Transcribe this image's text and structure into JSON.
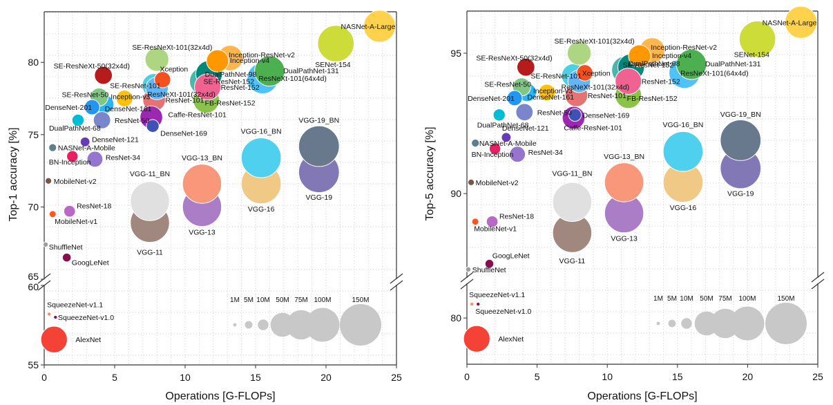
{
  "chart_data": [
    {
      "type": "scatter",
      "title": "",
      "xlabel": "Operations [G-FLOPs]",
      "ylabel": "Top-1 accuracy [%]",
      "xlim": [
        0,
        25
      ],
      "x_ticks": [
        "0",
        "5",
        "10",
        "15",
        "20",
        "25"
      ],
      "ylim_upper": [
        65,
        83.5
      ],
      "ylim_lower": [
        55,
        60
      ],
      "y_ticks_upper": [
        "65",
        "70",
        "75",
        "80"
      ],
      "y_ticks_lower": [
        "55",
        "60"
      ],
      "axis_break": "65 / 60",
      "grid": true,
      "bubble_size": "parameters",
      "legend": {
        "position": "bottom-right",
        "entries": [
          "1M",
          "5M",
          "10M",
          "50M",
          "75M",
          "100M",
          "150M"
        ],
        "values_M": [
          1,
          5,
          10,
          50,
          75,
          100,
          150
        ]
      },
      "points": [
        {
          "name": "NASNet-A-Large",
          "x": 23.8,
          "y": 82.5,
          "params_M": 88.9,
          "color": "#ffd24d"
        },
        {
          "name": "SENet-154",
          "x": 20.7,
          "y": 81.3,
          "params_M": 115.1,
          "color": "#cddc39"
        },
        {
          "name": "SE-ResNeXt-101(32x4d)",
          "x": 8.0,
          "y": 80.2,
          "params_M": 49.0,
          "color": "#aed581"
        },
        {
          "name": "Inception-ResNet-v2",
          "x": 13.2,
          "y": 80.3,
          "params_M": 55.8,
          "color": "#ffb74d"
        },
        {
          "name": "Inception-v4",
          "x": 12.3,
          "y": 80.1,
          "params_M": 42.7,
          "color": "#ff9800"
        },
        {
          "name": "DualPathNet-131",
          "x": 16.0,
          "y": 79.4,
          "params_M": 79.3,
          "color": "#4caf50"
        },
        {
          "name": "DualPathNet-98",
          "x": 11.7,
          "y": 79.2,
          "params_M": 61.6,
          "color": "#00897b"
        },
        {
          "name": "ResNeXt-101(64x4d)",
          "x": 15.5,
          "y": 78.9,
          "params_M": 83.5,
          "color": "#4fc3f7"
        },
        {
          "name": "SE-ResNeXt-50(32x4d)",
          "x": 4.2,
          "y": 79.1,
          "params_M": 27.6,
          "color": "#b71c1c"
        },
        {
          "name": "Xception",
          "x": 8.4,
          "y": 78.8,
          "params_M": 22.9,
          "color": "#f4511e"
        },
        {
          "name": "SE-ResNet-152",
          "x": 11.3,
          "y": 78.7,
          "params_M": 66.8,
          "color": "#4db6ac"
        },
        {
          "name": "SE-ResNet-101",
          "x": 7.8,
          "y": 78.4,
          "params_M": 49.3,
          "color": "#4dd0e1"
        },
        {
          "name": "ResNeXt-101(32x4d)",
          "x": 8.0,
          "y": 78.2,
          "params_M": 44.2,
          "color": "#64b5f6"
        },
        {
          "name": "ResNet-152",
          "x": 11.6,
          "y": 78.3,
          "params_M": 60.2,
          "color": "#f06292"
        },
        {
          "name": "ResNet-101",
          "x": 7.8,
          "y": 77.4,
          "params_M": 44.5,
          "color": "#e57373"
        },
        {
          "name": "FB-ResNet-152",
          "x": 11.5,
          "y": 77.4,
          "params_M": 60.3,
          "color": "#8bc34a"
        },
        {
          "name": "SE-ResNet-50",
          "x": 3.9,
          "y": 77.6,
          "params_M": 28.1,
          "color": "#81c784"
        },
        {
          "name": "Inception-v3",
          "x": 5.7,
          "y": 77.5,
          "params_M": 23.8,
          "color": "#ffc107"
        },
        {
          "name": "DenseNet-161",
          "x": 4.3,
          "y": 77.1,
          "params_M": 28.7,
          "color": "#29b6f6"
        },
        {
          "name": "DenseNet-201",
          "x": 3.4,
          "y": 76.9,
          "params_M": 20.0,
          "color": "#2196f3"
        },
        {
          "name": "ResNet-50",
          "x": 4.1,
          "y": 76.0,
          "params_M": 25.6,
          "color": "#7986cb"
        },
        {
          "name": "Caffe-ResNet-101",
          "x": 7.6,
          "y": 76.2,
          "params_M": 44.5,
          "color": "#9c27b0"
        },
        {
          "name": "DenseNet-169",
          "x": 7.7,
          "y": 75.6,
          "params_M": 14.1,
          "color": "#3f51b5"
        },
        {
          "name": "DualPathNet-68",
          "x": 2.4,
          "y": 76.0,
          "params_M": 12.6,
          "color": "#00bcd4"
        },
        {
          "name": "DenseNet-121",
          "x": 2.9,
          "y": 74.5,
          "params_M": 8.0,
          "color": "#673ab7"
        },
        {
          "name": "NASNet-A-Mobile",
          "x": 0.6,
          "y": 74.1,
          "params_M": 5.3,
          "color": "#607d8b"
        },
        {
          "name": "BN-Inception",
          "x": 2.0,
          "y": 73.5,
          "params_M": 11.3,
          "color": "#e91e63"
        },
        {
          "name": "ResNet-34",
          "x": 3.6,
          "y": 73.3,
          "params_M": 21.8,
          "color": "#9575cd"
        },
        {
          "name": "MobileNet-v2",
          "x": 0.3,
          "y": 71.8,
          "params_M": 3.5,
          "color": "#795548"
        },
        {
          "name": "ResNet-18",
          "x": 1.8,
          "y": 69.7,
          "params_M": 11.7,
          "color": "#ba68c8"
        },
        {
          "name": "MobileNet-v1",
          "x": 0.6,
          "y": 69.5,
          "params_M": 4.2,
          "color": "#ff5722"
        },
        {
          "name": "ShuffleNet",
          "x": 0.1,
          "y": 67.4,
          "params_M": 2.3,
          "color": "#9e9e9e"
        },
        {
          "name": "GoogLeNet",
          "x": 1.6,
          "y": 66.5,
          "params_M": 6.6,
          "color": "#880e4f"
        },
        {
          "name": "SqueezeNet-v1.1",
          "x": 0.35,
          "y": 58.2,
          "params_M": 1.2,
          "color": "#ff8a65"
        },
        {
          "name": "SqueezeNet-v1.0",
          "x": 0.8,
          "y": 58.0,
          "params_M": 1.2,
          "color": "#880e4f"
        },
        {
          "name": "AlexNet",
          "x": 0.7,
          "y": 56.6,
          "params_M": 61.1,
          "color": "#f44336"
        },
        {
          "name": "VGG-11",
          "x": 7.5,
          "y": 68.9,
          "params_M": 132.9,
          "color": "#a1887f"
        },
        {
          "name": "VGG-11_BN",
          "x": 7.5,
          "y": 70.4,
          "params_M": 132.9,
          "color": "#e0e0e0"
        },
        {
          "name": "VGG-13",
          "x": 11.2,
          "y": 70.0,
          "params_M": 133.0,
          "color": "#ab7dc6"
        },
        {
          "name": "VGG-13_BN",
          "x": 11.2,
          "y": 71.6,
          "params_M": 133.0,
          "color": "#f8977a"
        },
        {
          "name": "VGG-16",
          "x": 15.4,
          "y": 71.6,
          "params_M": 138.4,
          "color": "#f0c987"
        },
        {
          "name": "VGG-16_BN",
          "x": 15.4,
          "y": 73.4,
          "params_M": 138.4,
          "color": "#4fd0ee"
        },
        {
          "name": "VGG-19",
          "x": 19.5,
          "y": 72.4,
          "params_M": 143.7,
          "color": "#8378b6"
        },
        {
          "name": "VGG-19_BN",
          "x": 19.5,
          "y": 74.2,
          "params_M": 143.7,
          "color": "#68798d"
        }
      ]
    },
    {
      "type": "scatter",
      "title": "",
      "xlabel": "Operations [G-FLOPs]",
      "ylabel": "Top-5 accuracy [%]",
      "xlim": [
        0,
        25
      ],
      "x_ticks": [
        "0",
        "5",
        "10",
        "15",
        "20",
        "25"
      ],
      "ylim_upper": [
        87,
        96.5
      ],
      "ylim_lower": [
        78,
        81.5
      ],
      "y_ticks_upper": [
        "90",
        "95"
      ],
      "y_ticks_lower": [
        "80"
      ],
      "axis_break": "87 / 81.5",
      "grid": true,
      "bubble_size": "parameters",
      "legend": {
        "position": "bottom-right",
        "entries": [
          "1M",
          "5M",
          "10M",
          "50M",
          "75M",
          "100M",
          "150M"
        ],
        "values_M": [
          1,
          5,
          10,
          50,
          75,
          100,
          150
        ]
      },
      "points": [
        {
          "name": "NASNet-A-Large",
          "x": 23.8,
          "y": 96.1,
          "params_M": 88.9,
          "color": "#ffd24d"
        },
        {
          "name": "SENet-154",
          "x": 20.7,
          "y": 95.5,
          "params_M": 115.1,
          "color": "#cddc39"
        },
        {
          "name": "SE-ResNeXt-101(32x4d)",
          "x": 8.0,
          "y": 95.0,
          "params_M": 49.0,
          "color": "#aed581"
        },
        {
          "name": "Inception-ResNet-v2",
          "x": 13.2,
          "y": 95.1,
          "params_M": 55.8,
          "color": "#ffb74d"
        },
        {
          "name": "Inception-v4",
          "x": 12.3,
          "y": 94.9,
          "params_M": 42.7,
          "color": "#ff9800"
        },
        {
          "name": "DualPathNet-131",
          "x": 16.0,
          "y": 94.6,
          "params_M": 79.3,
          "color": "#4caf50"
        },
        {
          "name": "DualPathNet-98",
          "x": 11.7,
          "y": 94.5,
          "params_M": 61.6,
          "color": "#00897b"
        },
        {
          "name": "ResNeXt-101(64x4d)",
          "x": 15.5,
          "y": 94.3,
          "params_M": 83.5,
          "color": "#4fc3f7"
        },
        {
          "name": "SE-ResNeXt-50(32x4d)",
          "x": 4.2,
          "y": 94.5,
          "params_M": 27.6,
          "color": "#b71c1c"
        },
        {
          "name": "Xception",
          "x": 8.4,
          "y": 94.3,
          "params_M": 22.9,
          "color": "#f4511e"
        },
        {
          "name": "SE-ResNet-152",
          "x": 11.3,
          "y": 94.4,
          "params_M": 66.8,
          "color": "#4db6ac"
        },
        {
          "name": "SE-ResNet-101",
          "x": 7.6,
          "y": 94.2,
          "params_M": 49.3,
          "color": "#4dd0e1"
        },
        {
          "name": "ResNeXt-101(32x4d)",
          "x": 8.0,
          "y": 94.0,
          "params_M": 44.2,
          "color": "#64b5f6"
        },
        {
          "name": "ResNet-152",
          "x": 11.5,
          "y": 94.0,
          "params_M": 60.2,
          "color": "#f06292"
        },
        {
          "name": "ResNet-101",
          "x": 7.8,
          "y": 93.5,
          "params_M": 44.5,
          "color": "#e57373"
        },
        {
          "name": "FB-ResNet-152",
          "x": 11.5,
          "y": 93.5,
          "params_M": 60.3,
          "color": "#8bc34a"
        },
        {
          "name": "SE-ResNet-50",
          "x": 3.9,
          "y": 93.8,
          "params_M": 28.1,
          "color": "#81c784"
        },
        {
          "name": "Inception-v3",
          "x": 5.7,
          "y": 93.6,
          "params_M": 23.8,
          "color": "#ffc107"
        },
        {
          "name": "DenseNet-161",
          "x": 4.3,
          "y": 93.6,
          "params_M": 28.7,
          "color": "#29b6f6"
        },
        {
          "name": "DenseNet-201",
          "x": 3.4,
          "y": 93.4,
          "params_M": 20.0,
          "color": "#2196f3"
        },
        {
          "name": "ResNet-50",
          "x": 4.1,
          "y": 92.9,
          "params_M": 25.6,
          "color": "#7986cb"
        },
        {
          "name": "Caffe-ResNet-101",
          "x": 7.6,
          "y": 92.7,
          "params_M": 44.5,
          "color": "#9c27b0"
        },
        {
          "name": "DenseNet-169",
          "x": 7.7,
          "y": 92.8,
          "params_M": 14.1,
          "color": "#3f51b5"
        },
        {
          "name": "DualPathNet-68",
          "x": 2.3,
          "y": 92.8,
          "params_M": 12.6,
          "color": "#00bcd4"
        },
        {
          "name": "DenseNet-121",
          "x": 2.8,
          "y": 92.0,
          "params_M": 8.0,
          "color": "#673ab7"
        },
        {
          "name": "NASNet-A-Mobile",
          "x": 0.6,
          "y": 91.8,
          "params_M": 5.3,
          "color": "#607d8b"
        },
        {
          "name": "BN-Inception",
          "x": 2.0,
          "y": 91.6,
          "params_M": 11.3,
          "color": "#e91e63"
        },
        {
          "name": "ResNet-34",
          "x": 3.6,
          "y": 91.4,
          "params_M": 21.8,
          "color": "#9575cd"
        },
        {
          "name": "MobileNet-v2",
          "x": 0.3,
          "y": 90.4,
          "params_M": 3.5,
          "color": "#795548"
        },
        {
          "name": "ResNet-18",
          "x": 1.8,
          "y": 89.0,
          "params_M": 11.7,
          "color": "#ba68c8"
        },
        {
          "name": "MobileNet-v1",
          "x": 0.6,
          "y": 89.0,
          "params_M": 4.2,
          "color": "#ff5722"
        },
        {
          "name": "ShuffleNet",
          "x": 0.1,
          "y": 87.3,
          "params_M": 2.3,
          "color": "#9e9e9e"
        },
        {
          "name": "GoogLeNet",
          "x": 1.6,
          "y": 87.5,
          "params_M": 6.6,
          "color": "#880e4f"
        },
        {
          "name": "SqueezeNet-v1.1",
          "x": 0.35,
          "y": 80.6,
          "params_M": 1.2,
          "color": "#ff8a65"
        },
        {
          "name": "SqueezeNet-v1.0",
          "x": 0.8,
          "y": 80.6,
          "params_M": 1.2,
          "color": "#880e4f"
        },
        {
          "name": "AlexNet",
          "x": 0.7,
          "y": 79.1,
          "params_M": 61.1,
          "color": "#f44336"
        },
        {
          "name": "VGG-11",
          "x": 7.5,
          "y": 88.6,
          "params_M": 132.9,
          "color": "#a1887f"
        },
        {
          "name": "VGG-11_BN",
          "x": 7.5,
          "y": 89.7,
          "params_M": 132.9,
          "color": "#e0e0e0"
        },
        {
          "name": "VGG-13",
          "x": 11.2,
          "y": 89.3,
          "params_M": 133.0,
          "color": "#ab7dc6"
        },
        {
          "name": "VGG-13_BN",
          "x": 11.2,
          "y": 90.4,
          "params_M": 133.0,
          "color": "#f8977a"
        },
        {
          "name": "VGG-16",
          "x": 15.4,
          "y": 90.4,
          "params_M": 138.4,
          "color": "#f0c987"
        },
        {
          "name": "VGG-16_BN",
          "x": 15.4,
          "y": 91.5,
          "params_M": 138.4,
          "color": "#4fd0ee"
        },
        {
          "name": "VGG-19",
          "x": 19.5,
          "y": 90.9,
          "params_M": 143.7,
          "color": "#8378b6"
        },
        {
          "name": "VGG-19_BN",
          "x": 19.5,
          "y": 91.9,
          "params_M": 143.7,
          "color": "#68798d"
        }
      ]
    }
  ]
}
